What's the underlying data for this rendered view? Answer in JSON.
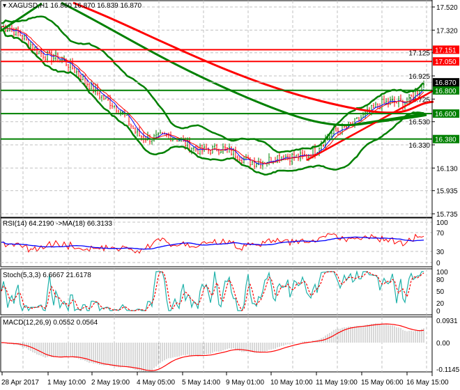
{
  "symbol_header": "XAGUSD,H1  16.860 16.870 16.839 16.870",
  "rsi_header": "RSI(14) 64.2190  ->MA(18) 66.3133",
  "stoch_header": "Stoch(5,3,3) 6.6667 21.6178",
  "macd_header": "MACD(12,26,9) 0.0552 0.0564",
  "colors": {
    "bull": "#008000",
    "bear": "#ff0000",
    "ma": "#0000ff",
    "stoch": "#20b2aa",
    "macd_hist": "#b0b0b0"
  },
  "chart_data": {
    "type": "candlestick",
    "instrument": "XAGUSD",
    "timeframe": "H1",
    "price_axis_ticks": [
      "17.520",
      "17.320",
      "17.125",
      "16.925",
      "16.725",
      "16.530",
      "16.330",
      "16.130",
      "15.935",
      "15.735"
    ],
    "ylim": [
      15.735,
      17.52
    ],
    "time_axis_ticks": [
      "28 Apr 2017",
      "1 May 10:00",
      "2 May 19:00",
      "4 May 05:00",
      "5 May 14:00",
      "9 May 01:00",
      "10 May 10:00",
      "11 May 19:00",
      "15 May 06:00",
      "16 May 15:00"
    ],
    "close_approx": [
      17.35,
      17.12,
      16.86,
      16.44,
      16.35,
      16.26,
      16.18,
      16.29,
      16.59,
      16.73,
      16.87
    ],
    "last_price": "16.870",
    "levels": [
      {
        "label": "17.151",
        "color": "#ff0000"
      },
      {
        "label": "17.050",
        "color": "#ff0000"
      },
      {
        "label": "16.800",
        "color": "#008000"
      },
      {
        "label": "16.600",
        "color": "#008000"
      },
      {
        "label": "16.380",
        "color": "#008000"
      }
    ],
    "rsi": {
      "ticks": [
        "100",
        "70",
        "30",
        "0"
      ],
      "value": 64.219,
      "ma": 66.3133
    },
    "stoch": {
      "ticks": [
        "100",
        "80",
        "50",
        "20",
        "0"
      ],
      "main": 6.6667,
      "signal": 21.6178
    },
    "macd": {
      "ticks": [
        "0.0931",
        "0.00",
        "-0.1145"
      ],
      "main": 0.0552,
      "signal": 0.0564
    }
  }
}
